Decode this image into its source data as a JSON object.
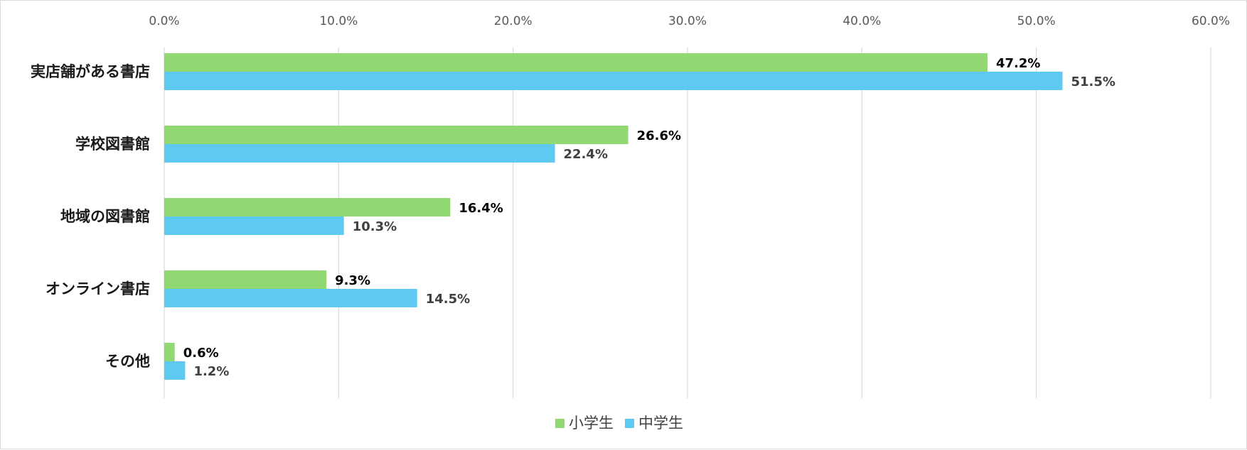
{
  "chart_data": {
    "type": "bar",
    "orientation": "horizontal",
    "categories": [
      "実店舗がある書店",
      "学校図書館",
      "地域の図書館",
      "オンライン書店",
      "その他"
    ],
    "series": [
      {
        "name": "小学生",
        "values": [
          47.2,
          26.6,
          16.4,
          9.3,
          0.6
        ],
        "labels": [
          "47.2%",
          "26.6%",
          "16.4%",
          "9.3%",
          "0.6%"
        ],
        "color": "#92d872",
        "label_color": "#000000"
      },
      {
        "name": "中学生",
        "values": [
          51.5,
          22.4,
          10.3,
          14.5,
          1.2
        ],
        "labels": [
          "51.5%",
          "22.4%",
          "10.3%",
          "14.5%",
          "1.2%"
        ],
        "color": "#5ecaf2",
        "label_color": "#404040"
      }
    ],
    "x_ticks": [
      "0.0%",
      "10.0%",
      "20.0%",
      "30.0%",
      "40.0%",
      "50.0%",
      "60.0%"
    ],
    "xlim": [
      0,
      60
    ],
    "axis_position": "top",
    "grid": true,
    "legend_position": "bottom"
  }
}
